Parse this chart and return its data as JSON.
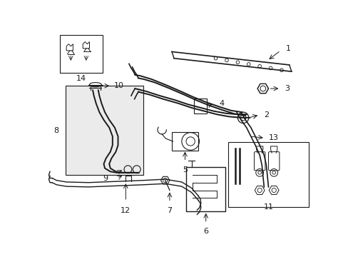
{
  "bg_color": "#ffffff",
  "line_color": "#1a1a1a",
  "box_fill": "#ebebeb",
  "figsize": [
    4.89,
    3.6
  ],
  "dpi": 100
}
